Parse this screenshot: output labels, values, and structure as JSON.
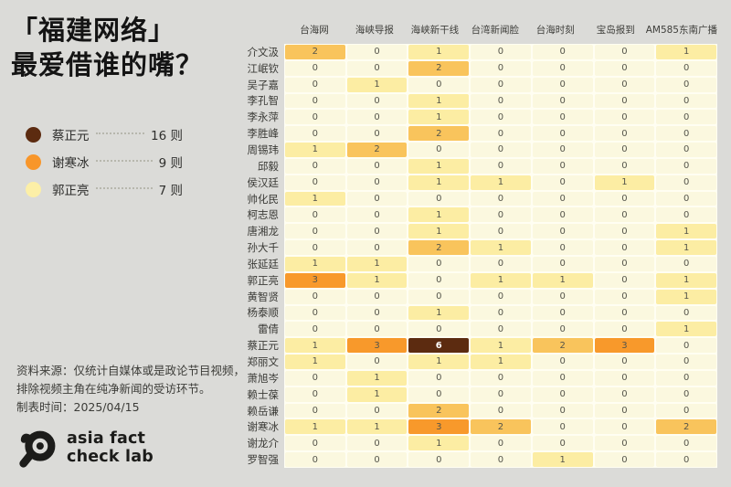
{
  "title": {
    "line1": "「福建网络」",
    "line2": "最爱借谁的嘴？"
  },
  "legend": {
    "items": [
      {
        "name": "蔡正元",
        "count": "16 则",
        "color": "#5c2b10"
      },
      {
        "name": "谢寒冰",
        "count": "9 则",
        "color": "#f8962a"
      },
      {
        "name": "郭正亮",
        "count": "7 则",
        "color": "#fcefa7"
      }
    ]
  },
  "source": {
    "line1": "资料来源：仅统计自媒体或是政论节目视频，",
    "line2": "排除视频主角在纯净新闻的受访环节。",
    "line3": "制表时间：2025/04/15"
  },
  "logo": {
    "line1": "asia fact",
    "line2": "check lab"
  },
  "chart_data": {
    "type": "heatmap",
    "title": "「福建网络」最爱借谁的嘴？",
    "columns": [
      "台海网",
      "海峡导报",
      "海峡新干线",
      "台湾新闻脸",
      "台海时刻",
      "宝岛报到",
      "AM585东南广播"
    ],
    "rows": [
      "介文汲",
      "江岷钦",
      "吴子嘉",
      "李孔智",
      "李永萍",
      "李胜峰",
      "周锡玮",
      "邱毅",
      "侯汉廷",
      "帅化民",
      "柯志恩",
      "唐湘龙",
      "孙大千",
      "张延廷",
      "郭正亮",
      "黄智贤",
      "杨泰顺",
      "雷倩",
      "蔡正元",
      "郑丽文",
      "萧旭岑",
      "赖士葆",
      "赖岳谦",
      "谢寒冰",
      "谢龙介",
      "罗智强"
    ],
    "values": [
      [
        2,
        0,
        1,
        0,
        0,
        0,
        1
      ],
      [
        0,
        0,
        2,
        0,
        0,
        0,
        0
      ],
      [
        0,
        1,
        0,
        0,
        0,
        0,
        0
      ],
      [
        0,
        0,
        1,
        0,
        0,
        0,
        0
      ],
      [
        0,
        0,
        1,
        0,
        0,
        0,
        0
      ],
      [
        0,
        0,
        2,
        0,
        0,
        0,
        0
      ],
      [
        1,
        2,
        0,
        0,
        0,
        0,
        0
      ],
      [
        0,
        0,
        1,
        0,
        0,
        0,
        0
      ],
      [
        0,
        0,
        1,
        1,
        0,
        1,
        0
      ],
      [
        1,
        0,
        0,
        0,
        0,
        0,
        0
      ],
      [
        0,
        0,
        1,
        0,
        0,
        0,
        0
      ],
      [
        0,
        0,
        1,
        0,
        0,
        0,
        1
      ],
      [
        0,
        0,
        2,
        1,
        0,
        0,
        1
      ],
      [
        1,
        1,
        0,
        0,
        0,
        0,
        0
      ],
      [
        3,
        1,
        0,
        1,
        1,
        0,
        1
      ],
      [
        0,
        0,
        0,
        0,
        0,
        0,
        1
      ],
      [
        0,
        0,
        1,
        0,
        0,
        0,
        0
      ],
      [
        0,
        0,
        0,
        0,
        0,
        0,
        1
      ],
      [
        1,
        3,
        6,
        1,
        2,
        3,
        0
      ],
      [
        1,
        0,
        1,
        1,
        0,
        0,
        0
      ],
      [
        0,
        1,
        0,
        0,
        0,
        0,
        0
      ],
      [
        0,
        1,
        0,
        0,
        0,
        0,
        0
      ],
      [
        0,
        0,
        2,
        0,
        0,
        0,
        0
      ],
      [
        1,
        1,
        3,
        2,
        0,
        0,
        2
      ],
      [
        0,
        0,
        1,
        0,
        0,
        0,
        0
      ],
      [
        0,
        0,
        0,
        0,
        1,
        0,
        0
      ]
    ],
    "color_scale": {
      "0": "#fbf8df",
      "1": "#fceda3",
      "2": "#f9c45c",
      "3": "#f8992b",
      "6": "#5c2b10"
    },
    "max_value": 6,
    "legend_totals": [
      {
        "name": "蔡正元",
        "total": 16
      },
      {
        "name": "谢寒冰",
        "total": 9
      },
      {
        "name": "郭正亮",
        "total": 7
      }
    ]
  }
}
